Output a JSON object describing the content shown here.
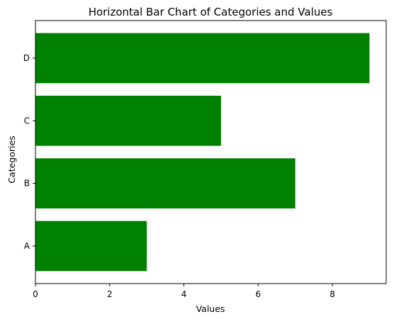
{
  "chart_data": {
    "type": "bar",
    "orientation": "horizontal",
    "title": "Horizontal Bar Chart of Categories and Values",
    "xlabel": "Values",
    "ylabel": "Categories",
    "categories": [
      "A",
      "B",
      "C",
      "D"
    ],
    "values": [
      3,
      7,
      5,
      9
    ],
    "xlim": [
      0,
      9.45
    ],
    "xticks": [
      0,
      2,
      4,
      6,
      8
    ],
    "bar_color": "#008000",
    "grid": false,
    "legend": "none"
  }
}
